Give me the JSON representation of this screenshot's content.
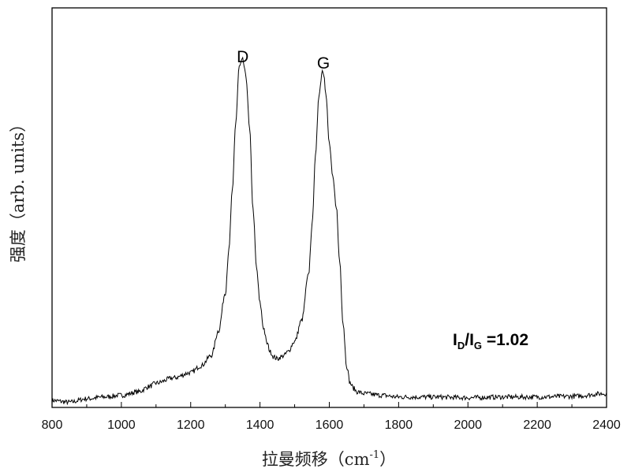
{
  "chart_data": {
    "type": "line",
    "xlabel": "拉曼频移（cm",
    "xlabel_sup": "-1",
    "xlabel_close": "）",
    "ylabel": "强度（arb. units）",
    "xlim": [
      800,
      2400
    ],
    "ylim": [
      0,
      1.15
    ],
    "x_ticks": [
      800,
      1000,
      1200,
      1400,
      1600,
      1800,
      2000,
      2200,
      2400
    ],
    "x_tick_labels": [
      "800",
      "1000",
      "1200",
      "1400",
      "1600",
      "1800",
      "2000",
      "2200",
      "2400"
    ],
    "y_ticks_shown": false,
    "grid": false,
    "annotations": {
      "peak_d": {
        "text": "D",
        "x": 1350
      },
      "peak_g": {
        "text": "G",
        "x": 1583
      },
      "ratio": {
        "main1": "I",
        "sub1": "D",
        "slash": "/I",
        "sub2": "G",
        "rest": " =1.02"
      }
    },
    "series": [
      {
        "color": "#000000",
        "x": [
          800,
          850,
          900,
          950,
          1000,
          1050,
          1080,
          1100,
          1150,
          1200,
          1230,
          1260,
          1280,
          1300,
          1310,
          1320,
          1330,
          1340,
          1350,
          1360,
          1370,
          1380,
          1390,
          1400,
          1410,
          1420,
          1430,
          1440,
          1450,
          1460,
          1470,
          1480,
          1500,
          1520,
          1540,
          1550,
          1560,
          1570,
          1580,
          1585,
          1590,
          1600,
          1610,
          1620,
          1630,
          1640,
          1650,
          1660,
          1670,
          1680,
          1700,
          1750,
          1800,
          1900,
          2000,
          2100,
          2200,
          2300,
          2400
        ],
        "y": [
          0.02,
          0.015,
          0.025,
          0.03,
          0.035,
          0.045,
          0.06,
          0.07,
          0.085,
          0.1,
          0.12,
          0.15,
          0.22,
          0.33,
          0.45,
          0.62,
          0.82,
          0.98,
          1.0,
          0.95,
          0.8,
          0.57,
          0.4,
          0.3,
          0.23,
          0.185,
          0.16,
          0.145,
          0.14,
          0.145,
          0.15,
          0.16,
          0.19,
          0.25,
          0.38,
          0.52,
          0.72,
          0.9,
          0.97,
          0.96,
          0.9,
          0.76,
          0.66,
          0.58,
          0.42,
          0.24,
          0.12,
          0.07,
          0.055,
          0.045,
          0.04,
          0.035,
          0.03,
          0.03,
          0.028,
          0.03,
          0.03,
          0.032,
          0.04
        ]
      }
    ]
  }
}
